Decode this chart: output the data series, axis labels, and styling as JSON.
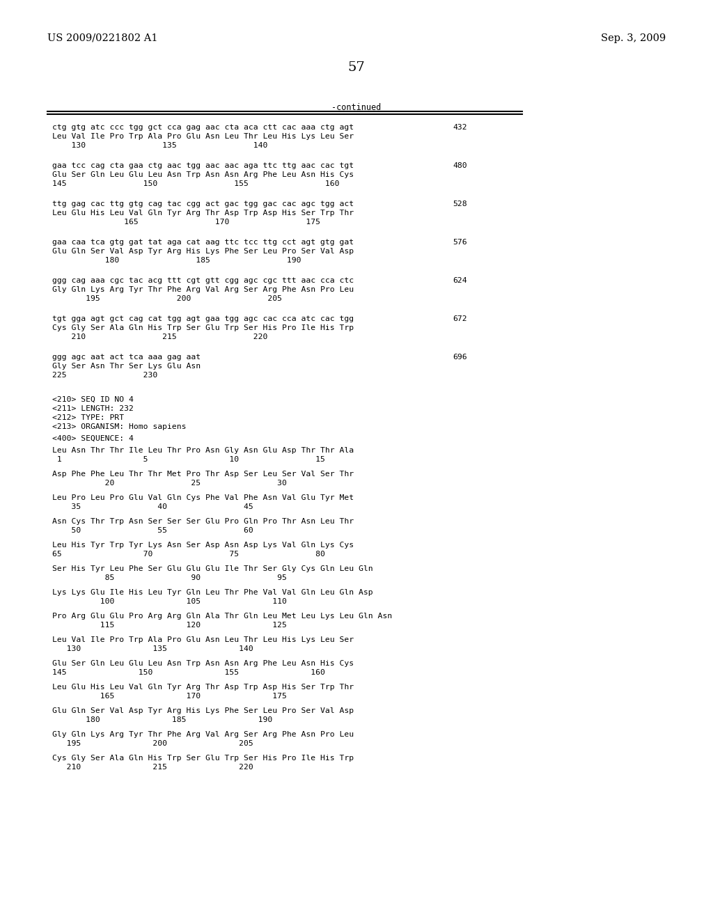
{
  "header_left": "US 2009/0221802 A1",
  "header_right": "Sep. 3, 2009",
  "page_number": "57",
  "continued_label": "-continued",
  "background_color": "#ffffff",
  "text_color": "#000000",
  "content_blocks": [
    {
      "dna": "ctg gtg atc ccc tgg gct cca gag aac cta aca ctt cac aaa ctg agt",
      "num_right": "432",
      "aa": "Leu Val Ile Pro Trp Ala Pro Glu Asn Leu Thr Leu His Lys Leu Ser",
      "pos": "    130                135                140"
    },
    {
      "dna": "gaa tcc cag cta gaa ctg aac tgg aac aac aga ttc ttg aac cac tgt",
      "num_right": "480",
      "aa": "Glu Ser Gln Leu Glu Leu Asn Trp Asn Asn Arg Phe Leu Asn His Cys",
      "pos": "145                150                155                160"
    },
    {
      "dna": "ttg gag cac ttg gtg cag tac cgg act gac tgg gac cac agc tgg act",
      "num_right": "528",
      "aa": "Leu Glu His Leu Val Gln Tyr Arg Thr Asp Trp Asp His Ser Trp Thr",
      "pos": "               165                170                175"
    },
    {
      "dna": "gaa caa tca gtg gat tat aga cat aag ttc tcc ttg cct agt gtg gat",
      "num_right": "576",
      "aa": "Glu Gln Ser Val Asp Tyr Arg His Lys Phe Ser Leu Pro Ser Val Asp",
      "pos": "           180                185                190"
    },
    {
      "dna": "ggg cag aaa cgc tac acg ttt cgt gtt cgg agc cgc ttt aac cca ctc",
      "num_right": "624",
      "aa": "Gly Gln Lys Arg Tyr Thr Phe Arg Val Arg Ser Arg Phe Asn Pro Leu",
      "pos": "       195                200                205"
    },
    {
      "dna": "tgt gga agt gct cag cat tgg agt gaa tgg agc cac cca atc cac tgg",
      "num_right": "672",
      "aa": "Cys Gly Ser Ala Gln His Trp Ser Glu Trp Ser His Pro Ile His Trp",
      "pos": "    210                215                220"
    },
    {
      "dna": "ggg agc aat act tca aaa gag aat",
      "num_right": "696",
      "aa": "Gly Ser Asn Thr Ser Lys Glu Asn",
      "pos": "225                230"
    }
  ],
  "seq_info": [
    "<210> SEQ ID NO 4",
    "<211> LENGTH: 232",
    "<212> TYPE: PRT",
    "<213> ORGANISM: Homo sapiens"
  ],
  "seq400": "<400> SEQUENCE: 4",
  "protein_blocks": [
    {
      "aa": "Leu Asn Thr Thr Ile Leu Thr Pro Asn Gly Asn Glu Asp Thr Thr Ala",
      "pos": " 1                 5                 10                15"
    },
    {
      "aa": "Asp Phe Phe Leu Thr Thr Met Pro Thr Asp Ser Leu Ser Val Ser Thr",
      "pos": "           20                25                30"
    },
    {
      "aa": "Leu Pro Leu Pro Glu Val Gln Cys Phe Val Phe Asn Val Glu Tyr Met",
      "pos": "    35                40                45"
    },
    {
      "aa": "Asn Cys Thr Trp Asn Ser Ser Ser Glu Pro Gln Pro Thr Asn Leu Thr",
      "pos": "    50                55                60"
    },
    {
      "aa": "Leu His Tyr Trp Tyr Lys Asn Ser Asp Asn Asp Lys Val Gln Lys Cys",
      "pos": "65                 70                75                80"
    },
    {
      "aa": "Ser His Tyr Leu Phe Ser Glu Glu Glu Ile Thr Ser Gly Cys Gln Leu Gln",
      "pos": "           85                90                95"
    },
    {
      "aa": "Lys Lys Glu Ile His Leu Tyr Gln Leu Thr Phe Val Val Gln Leu Gln Asp",
      "pos": "          100               105               110"
    },
    {
      "aa": "Pro Arg Glu Glu Pro Arg Arg Gln Ala Thr Gln Leu Met Leu Lys Leu Gln Asn",
      "pos": "          115               120               125"
    },
    {
      "aa": "Leu Val Ile Pro Trp Ala Pro Glu Asn Leu Thr Leu His Lys Leu Ser",
      "pos": "   130               135               140"
    },
    {
      "aa": "Glu Ser Gln Leu Glu Leu Asn Trp Asn Asn Arg Phe Leu Asn His Cys",
      "pos": "145               150               155               160"
    },
    {
      "aa": "Leu Glu His Leu Val Gln Tyr Arg Thr Asp Trp Asp His Ser Trp Thr",
      "pos": "          165               170               175"
    },
    {
      "aa": "Glu Gln Ser Val Asp Tyr Arg His Lys Phe Ser Leu Pro Ser Val Asp",
      "pos": "       180               185               190"
    },
    {
      "aa": "Gly Gln Lys Arg Tyr Thr Phe Arg Val Arg Ser Arg Phe Asn Pro Leu",
      "pos": "   195               200               205"
    },
    {
      "aa": "Cys Gly Ser Ala Gln His Trp Ser Glu Trp Ser His Pro Ile His Trp",
      "pos": "   210               215               220"
    }
  ]
}
